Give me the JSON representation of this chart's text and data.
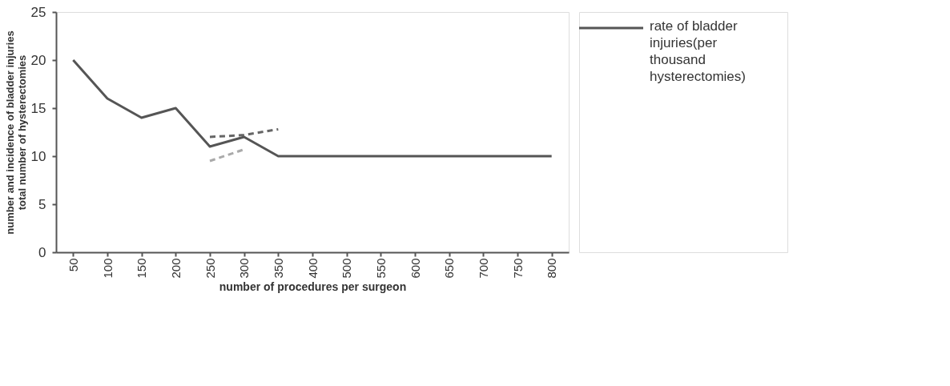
{
  "chart_data": {
    "type": "line",
    "xlabel": "number of procedures per surgeon",
    "ylabel": "number and incidence of bladder injuries\ntotal number of hysterectomies",
    "categories": [
      "50",
      "100",
      "150",
      "200",
      "250",
      "300",
      "350",
      "400",
      "500",
      "550",
      "600",
      "650",
      "700",
      "750",
      "800"
    ],
    "series": [
      {
        "name": "rate of bladder injuries(per thousand hysterectomies)",
        "color": "#555555",
        "line_style": "solid",
        "values": [
          20,
          16,
          14,
          15,
          11,
          12,
          10,
          10,
          10,
          10,
          10,
          10,
          10,
          10,
          10
        ]
      },
      {
        "color": "#666666",
        "line_style": "dashed",
        "values": [
          null,
          null,
          null,
          null,
          12,
          12.2,
          12.8,
          null,
          null,
          null,
          null,
          null,
          null,
          null,
          null
        ]
      },
      {
        "color": "#aaaaaa",
        "line_style": "dashed",
        "values": [
          null,
          null,
          null,
          null,
          9.5,
          10.7,
          null,
          null,
          null,
          null,
          null,
          null,
          null,
          null,
          null
        ]
      }
    ],
    "ylim": [
      0,
      25
    ],
    "yticks": [
      0,
      5,
      10,
      15,
      20,
      25
    ],
    "grid": false,
    "legend": "right",
    "marker": "none"
  }
}
